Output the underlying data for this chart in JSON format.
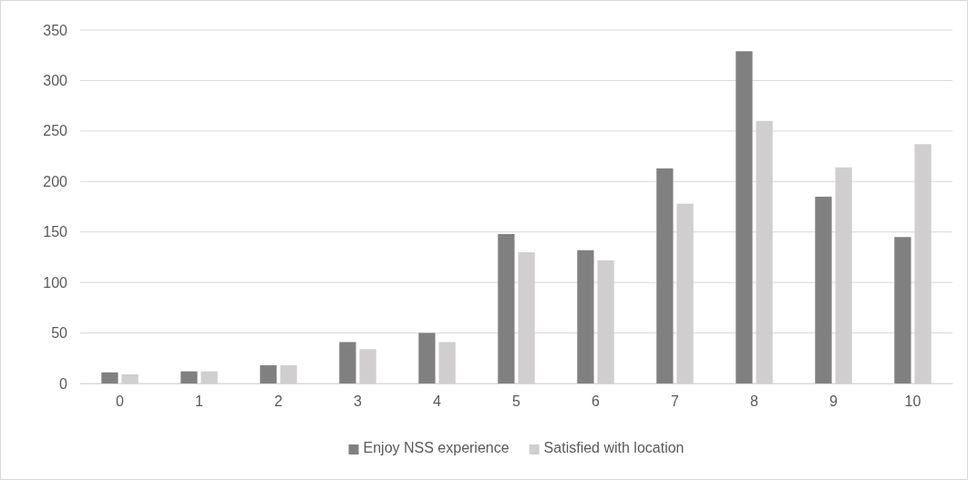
{
  "chart_data": {
    "type": "bar",
    "categories": [
      "0",
      "1",
      "2",
      "3",
      "4",
      "5",
      "6",
      "7",
      "8",
      "9",
      "10"
    ],
    "series": [
      {
        "name": "Enjoy NSS experience",
        "color": "#808080",
        "values": [
          11,
          12,
          18,
          41,
          50,
          148,
          132,
          213,
          329,
          185,
          145
        ]
      },
      {
        "name": "Satisfied with location",
        "color": "#d0cece",
        "values": [
          9,
          12,
          18,
          34,
          41,
          130,
          122,
          178,
          260,
          214,
          237
        ]
      }
    ],
    "ylim": [
      0,
      350
    ],
    "yticks": [
      0,
      50,
      100,
      150,
      200,
      250,
      300,
      350
    ],
    "grid": "y",
    "legend": "bottom"
  }
}
